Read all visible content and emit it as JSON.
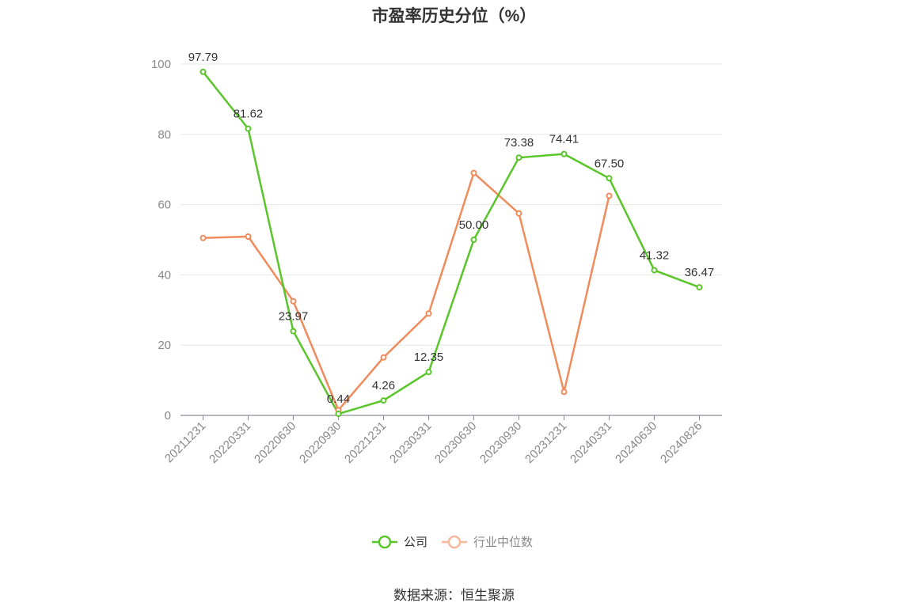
{
  "chart_data": {
    "type": "line",
    "title": "市盈率历史分位（%）",
    "categories": [
      "20211231",
      "20220331",
      "20220630",
      "20220930",
      "20221231",
      "20230331",
      "20230630",
      "20230930",
      "20231231",
      "20240331",
      "20240630",
      "20240826"
    ],
    "ylim": [
      0,
      100
    ],
    "yticks": [
      0,
      20,
      40,
      60,
      80,
      100
    ],
    "grid": true,
    "legend_position": "bottom",
    "series": [
      {
        "name": "公司",
        "color": "#5ac52a",
        "values": [
          97.79,
          81.62,
          23.97,
          0.44,
          4.26,
          12.35,
          50.0,
          73.38,
          74.41,
          67.5,
          41.32,
          36.47
        ],
        "labels": [
          "97.79",
          "81.62",
          "23.97",
          "0.44",
          "4.26",
          "12.35",
          "50.00",
          "73.38",
          "74.41",
          "67.50",
          "41.32",
          "36.47"
        ]
      },
      {
        "name": "行业中位数",
        "color": "#f08b5c",
        "legend_color": "#f5b89c",
        "values": [
          50.5,
          50.9,
          32.5,
          1.5,
          16.5,
          29.0,
          69.0,
          57.5,
          6.7,
          62.5,
          null,
          null
        ]
      }
    ]
  },
  "footer": {
    "source": "数据来源：恒生聚源"
  }
}
